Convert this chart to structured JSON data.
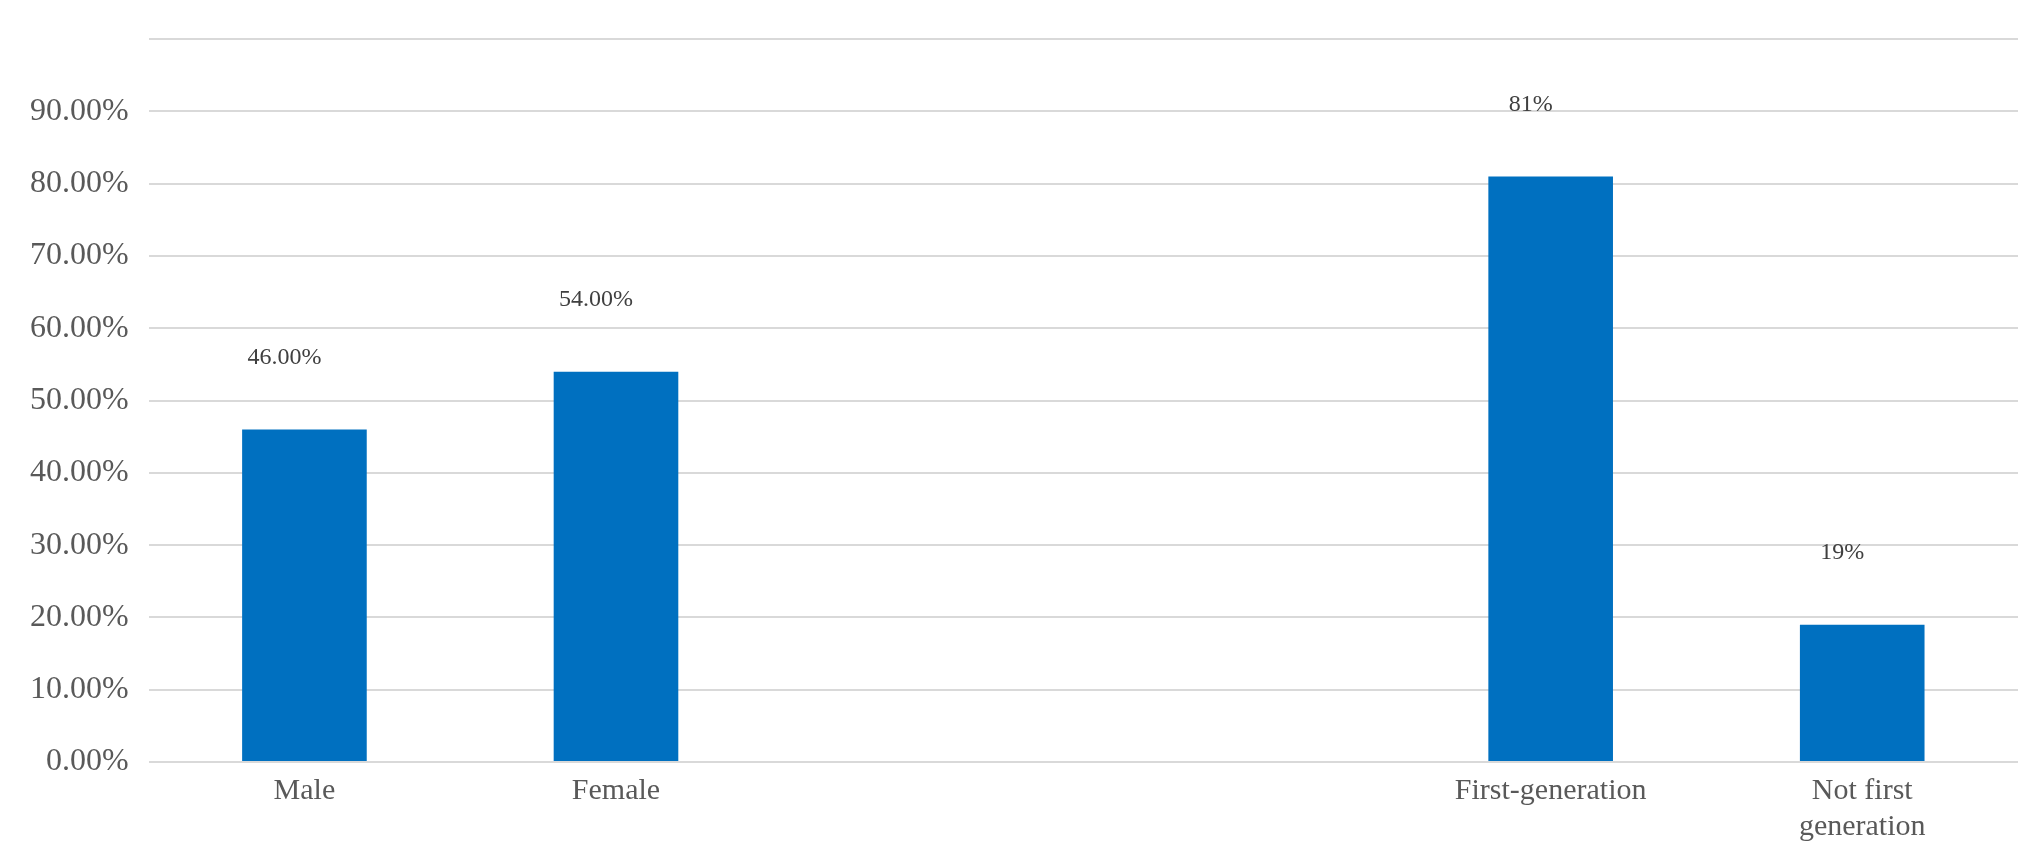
{
  "chart_data": {
    "type": "bar",
    "categories": [
      "Male",
      "Female",
      null,
      null,
      "First-generation",
      "Not first generation"
    ],
    "values": [
      46,
      54,
      null,
      null,
      81,
      19
    ],
    "value_labels": [
      "46.00%",
      "54.00%",
      null,
      null,
      "81%",
      "19%"
    ],
    "color": "#0070c0",
    "ylim": [
      0,
      100
    ],
    "yticks": [
      {
        "value": 0,
        "label": "0.00%"
      },
      {
        "value": 10,
        "label": "10.00%"
      },
      {
        "value": 20,
        "label": "20.00%"
      },
      {
        "value": 30,
        "label": "30.00%"
      },
      {
        "value": 40,
        "label": "40.00%"
      },
      {
        "value": 50,
        "label": "50.00%"
      },
      {
        "value": 60,
        "label": "60.00%"
      },
      {
        "value": 70,
        "label": "70.00%"
      },
      {
        "value": 80,
        "label": "80.00%"
      },
      {
        "value": 90,
        "label": "90.00%"
      },
      {
        "value": 100,
        "label": null
      }
    ],
    "grid": "y",
    "legend": false
  }
}
